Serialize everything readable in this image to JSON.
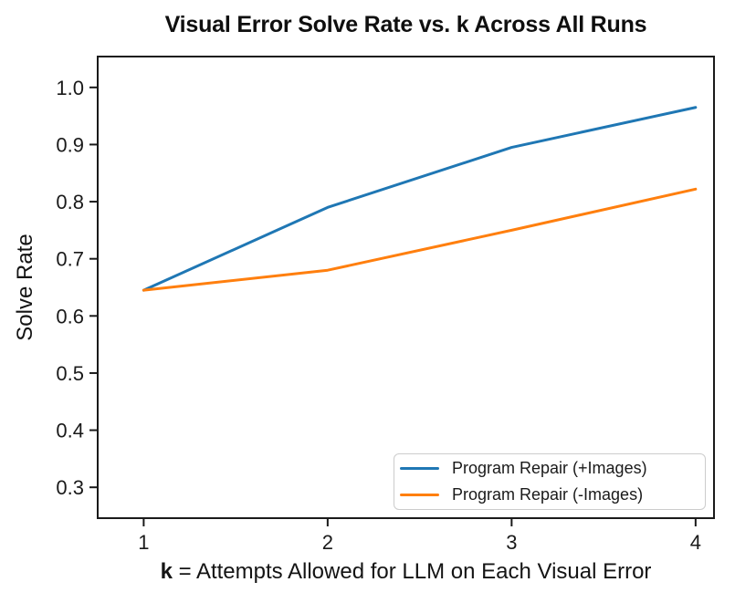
{
  "chart": {
    "title": "Visual Error Solve Rate vs. k Across All Runs",
    "ylabel": "Solve Rate",
    "xlabel_bold": "k",
    "xlabel_rest": " = Attempts Allowed for LLM on Each Visual Error"
  },
  "colors": {
    "axis": "#1a1a1a",
    "text": "#1a1a1a",
    "legend_border": "#cccccc",
    "background": "#ffffff"
  },
  "chart_data": {
    "type": "line",
    "title": "Visual Error Solve Rate vs. k Across All Runs",
    "xlabel": "k = Attempts Allowed for LLM on Each Visual Error",
    "ylabel": "Solve Rate",
    "x": [
      1,
      2,
      3,
      4
    ],
    "x_ticks": [
      "1",
      "2",
      "3",
      "4"
    ],
    "y_ticks": [
      0.3,
      0.4,
      0.5,
      0.6,
      0.7,
      0.8,
      0.9,
      1.0
    ],
    "xlim": [
      0.75,
      4.1
    ],
    "ylim": [
      0.246,
      1.054
    ],
    "grid": false,
    "legend_position": "lower right",
    "series": [
      {
        "name": "Program Repair (+Images)",
        "color": "#1f77b4",
        "values": [
          0.645,
          0.79,
          0.895,
          0.965
        ]
      },
      {
        "name": "Program Repair (-Images)",
        "color": "#ff7f0e",
        "values": [
          0.645,
          0.68,
          0.75,
          0.822
        ]
      }
    ]
  }
}
